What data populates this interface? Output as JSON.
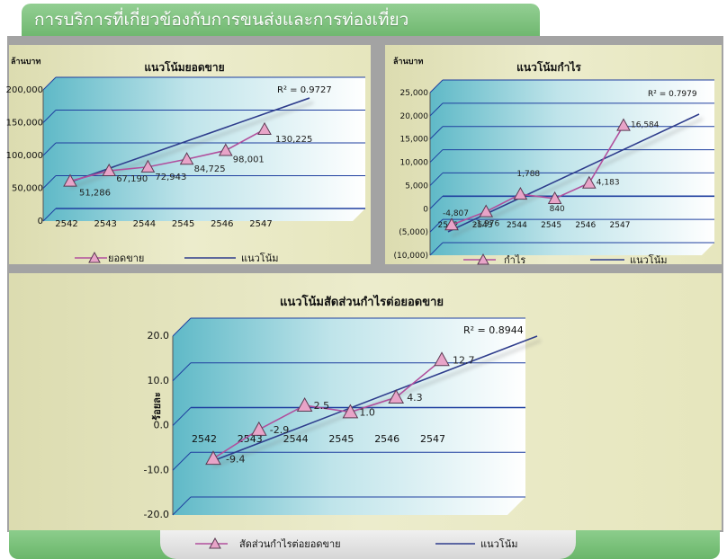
{
  "header": {
    "title": "การบริการที่เกี่ยวข้องกับการขนส่งและการท่องเที่ยว"
  },
  "colors": {
    "data_line": "#b14f9d",
    "marker_fill": "#e8a4c8",
    "trend_line": "#2f3d8c",
    "grid": "#1f3f9f"
  },
  "chart_data": [
    {
      "id": "sales",
      "type": "line",
      "title": "แนวโน้มยอดขาย",
      "ylabel": "ล้านบาท",
      "ylim": [
        0,
        200000
      ],
      "yticks": [
        "200,000",
        "150,000",
        "100,000",
        "50,000",
        "0"
      ],
      "ytick_values": [
        200000,
        150000,
        100000,
        50000,
        0
      ],
      "categories": [
        "2542",
        "2543",
        "2544",
        "2545",
        "2546",
        "2547"
      ],
      "series": [
        {
          "name": "ยอดขาย",
          "values": [
            51286,
            67190,
            72943,
            84725,
            98001,
            130225
          ],
          "labels": [
            "51,286",
            "67,190",
            "72,943",
            "84,725",
            "98,001",
            "130,225"
          ]
        }
      ],
      "trend": {
        "name": "แนวโน้ม",
        "r2": "R² = 0.9727",
        "start": 48000,
        "end": 178000
      },
      "legend": [
        "ยอดขาย",
        "แนวโน้ม"
      ]
    },
    {
      "id": "profit",
      "type": "line",
      "title": "แนวโน้มกำไร",
      "ylabel": "ล้านบาท",
      "ylim": [
        -10000,
        25000
      ],
      "yticks": [
        "25,000",
        "20,000",
        "15,000",
        "10,000",
        "5,000",
        "0",
        "(5,000)",
        "(10,000)"
      ],
      "ytick_values": [
        25000,
        20000,
        15000,
        10000,
        5000,
        0,
        -5000,
        -10000
      ],
      "categories": [
        "2542",
        "2543",
        "2544",
        "2545",
        "2546",
        "2547"
      ],
      "series": [
        {
          "name": "กำไร",
          "values": [
            -4807,
            -1976,
            1788,
            840,
            4183,
            16584
          ],
          "labels": [
            "-4,807",
            "-1,976",
            "1,788",
            "840",
            "4,183",
            "16,584"
          ]
        }
      ],
      "trend": {
        "name": "แนวโน้ม",
        "r2": "R² = 0.7979",
        "start": -6300,
        "end": 19000
      },
      "legend": [
        "กำไร",
        "แนวโน้ม"
      ]
    },
    {
      "id": "ratio",
      "type": "line",
      "title": "แนวโน้มสัดส่วนกำไรต่อยอดขาย",
      "ylabel": "ร้อยละ",
      "ylim": [
        -20,
        20
      ],
      "yticks": [
        "20.0",
        "10.0",
        "0.0",
        "-10.0",
        "-20.0"
      ],
      "ytick_values": [
        20,
        10,
        0,
        -10,
        -20
      ],
      "categories": [
        "2542",
        "2543",
        "2544",
        "2545",
        "2546",
        "2547"
      ],
      "series": [
        {
          "name": "สัดส่วนกำไรต่อยอดขาย",
          "values": [
            -9.4,
            -2.9,
            2.5,
            1.0,
            4.3,
            12.7
          ],
          "labels": [
            "-9.4",
            "-2.9",
            "2.5",
            "1.0",
            "4.3",
            "12.7"
          ]
        }
      ],
      "trend": {
        "name": "แนวโน้ม",
        "r2": "R² = 0.8944",
        "start": -10.2,
        "end": 18
      },
      "legend": [
        "สัดส่วนกำไรต่อยอดขาย",
        "แนวโน้ม"
      ]
    }
  ]
}
